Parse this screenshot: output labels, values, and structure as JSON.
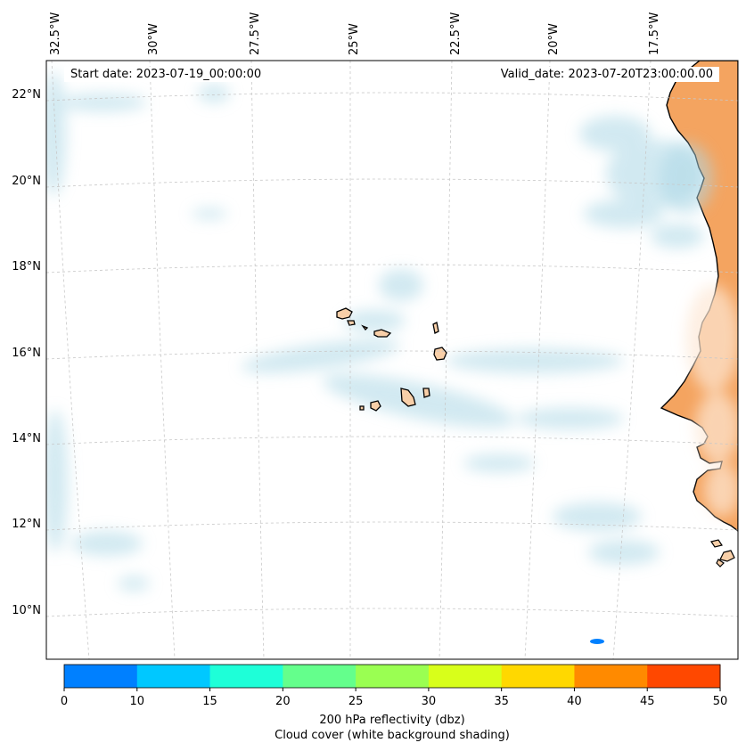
{
  "map": {
    "start_date": "Start date: 2023-07-19_00:00:00",
    "valid_date": "Valid_date: 2023-07-20T23:00:00.00",
    "lon_labels": [
      "32.5°W",
      "30°W",
      "27.5°W",
      "25°W",
      "22.5°W",
      "20°W",
      "17.5°W"
    ],
    "lat_labels": [
      "22°N",
      "20°N",
      "18°N",
      "16°N",
      "14°N",
      "12°N",
      "10°N"
    ],
    "land_fill": "#f4a460",
    "island_fill": "#f8cfa8",
    "cloud_color": "#add8e6",
    "grid_color": "#c8c8c8"
  },
  "colorbar": {
    "ticks": [
      "0",
      "10",
      "15",
      "20",
      "25",
      "30",
      "35",
      "40",
      "45",
      "50"
    ],
    "colors": [
      "#0080ff",
      "#00c8ff",
      "#1effd8",
      "#64ff8c",
      "#9aff52",
      "#d8ff1a",
      "#ffd800",
      "#ff8a00",
      "#ff4800"
    ],
    "title_line1": "200 hPa reflectivity (dbz)",
    "title_line2": "Cloud cover (white background shading)"
  }
}
